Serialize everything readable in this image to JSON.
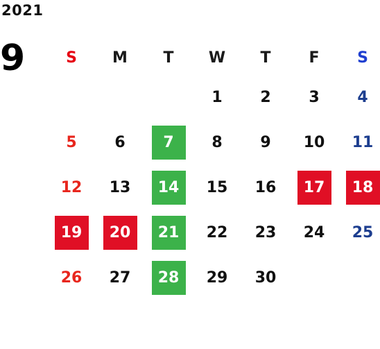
{
  "calendar": {
    "year": "2021",
    "month": "9",
    "weekdays": [
      "S",
      "M",
      "T",
      "W",
      "T",
      "F",
      "S"
    ],
    "weeks": [
      [
        {
          "day": "",
          "style": "empty"
        },
        {
          "day": "",
          "style": "empty"
        },
        {
          "day": "",
          "style": "empty"
        },
        {
          "day": "1",
          "style": "normal"
        },
        {
          "day": "2",
          "style": "normal"
        },
        {
          "day": "3",
          "style": "normal"
        },
        {
          "day": "4",
          "style": "sat"
        }
      ],
      [
        {
          "day": "5",
          "style": "sun"
        },
        {
          "day": "6",
          "style": "normal"
        },
        {
          "day": "7",
          "style": "green"
        },
        {
          "day": "8",
          "style": "normal"
        },
        {
          "day": "9",
          "style": "normal"
        },
        {
          "day": "10",
          "style": "normal"
        },
        {
          "day": "11",
          "style": "sat"
        }
      ],
      [
        {
          "day": "12",
          "style": "sun"
        },
        {
          "day": "13",
          "style": "normal"
        },
        {
          "day": "14",
          "style": "green"
        },
        {
          "day": "15",
          "style": "normal"
        },
        {
          "day": "16",
          "style": "normal"
        },
        {
          "day": "17",
          "style": "red"
        },
        {
          "day": "18",
          "style": "red"
        }
      ],
      [
        {
          "day": "19",
          "style": "red"
        },
        {
          "day": "20",
          "style": "red"
        },
        {
          "day": "21",
          "style": "green"
        },
        {
          "day": "22",
          "style": "normal"
        },
        {
          "day": "23",
          "style": "normal"
        },
        {
          "day": "24",
          "style": "normal"
        },
        {
          "day": "25",
          "style": "sat"
        }
      ],
      [
        {
          "day": "26",
          "style": "sun"
        },
        {
          "day": "27",
          "style": "normal"
        },
        {
          "day": "28",
          "style": "green"
        },
        {
          "day": "29",
          "style": "normal"
        },
        {
          "day": "30",
          "style": "normal"
        },
        {
          "day": "",
          "style": "empty"
        },
        {
          "day": "",
          "style": "empty"
        }
      ]
    ]
  },
  "colors": {
    "sunday": "#e8261d",
    "saturday": "#1d3e8f",
    "highlight_green": "#3cb24a",
    "highlight_red": "#e00f25"
  }
}
